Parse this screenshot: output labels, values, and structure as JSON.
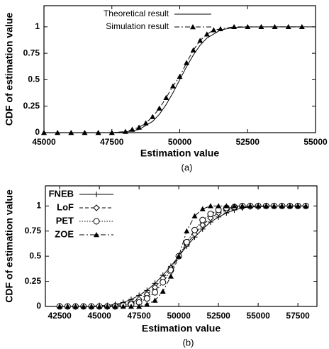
{
  "chart_data": [
    {
      "type": "line",
      "caption": "(a)",
      "xlabel": "Estimation value",
      "ylabel": "CDF of estimation value",
      "xlim": [
        45000,
        55000
      ],
      "xticks": [
        45000,
        47500,
        50000,
        52500,
        55000
      ],
      "ylim": [
        0,
        1.2
      ],
      "yticks": [
        0,
        0.25,
        0.5,
        0.75,
        1
      ],
      "grid": false,
      "legend": "top-left",
      "series": [
        {
          "name": "Theoretical result",
          "color": "#000000",
          "dash": "solid",
          "marker": "none",
          "x": [
            45000,
            47000,
            47500,
            48000,
            48500,
            49000,
            49250,
            49500,
            49750,
            50000,
            50250,
            50500,
            50750,
            51000,
            51500,
            52000,
            52500,
            55000
          ],
          "values": [
            0,
            0,
            0.001,
            0.006,
            0.03,
            0.106,
            0.174,
            0.266,
            0.377,
            0.5,
            0.623,
            0.734,
            0.826,
            0.894,
            0.97,
            0.994,
            0.999,
            1
          ]
        },
        {
          "name": "Simulation result",
          "color": "#000000",
          "dash": "dashdot",
          "marker": "triangle",
          "x": [
            45000,
            45500,
            46000,
            46500,
            47000,
            47500,
            48000,
            48250,
            48500,
            48750,
            49000,
            49250,
            49500,
            49750,
            50000,
            50250,
            50500,
            50750,
            51000,
            51250,
            51500,
            52000,
            52500,
            53000,
            53500,
            54000,
            54500
          ],
          "values": [
            0,
            0,
            0,
            0,
            0,
            0,
            0.01,
            0.03,
            0.05,
            0.09,
            0.15,
            0.23,
            0.33,
            0.44,
            0.53,
            0.66,
            0.78,
            0.87,
            0.93,
            0.97,
            0.98,
            1,
            1,
            1,
            1,
            1,
            1
          ]
        }
      ]
    },
    {
      "type": "line",
      "caption": "(b)",
      "xlabel": "Estimation value",
      "ylabel": "CDF of estimation value",
      "xlim": [
        41600,
        58700
      ],
      "xticks": [
        42500,
        45000,
        47500,
        50000,
        52500,
        55000,
        57500
      ],
      "ylim": [
        0,
        1.2
      ],
      "yticks": [
        0,
        0.25,
        0.5,
        0.75,
        1
      ],
      "grid": false,
      "legend": "top-left",
      "series": [
        {
          "name": "FNEB",
          "color": "#000000",
          "dash": "solid",
          "marker": "plus",
          "x": [
            42500,
            43000,
            43500,
            44000,
            44500,
            45000,
            45500,
            46000,
            46500,
            47000,
            47500,
            48000,
            48500,
            49000,
            49500,
            50000,
            50500,
            51000,
            51500,
            52000,
            52500,
            53000,
            53500,
            54000,
            54500,
            55000,
            55500,
            56000,
            56500,
            57000,
            57500,
            58000
          ],
          "values": [
            0,
            0,
            0,
            0,
            0,
            0.01,
            0.01,
            0.02,
            0.04,
            0.07,
            0.11,
            0.16,
            0.23,
            0.31,
            0.4,
            0.5,
            0.6,
            0.69,
            0.77,
            0.84,
            0.89,
            0.93,
            0.96,
            0.98,
            0.99,
            0.99,
            1,
            1,
            1,
            1,
            1,
            1
          ]
        },
        {
          "name": "LoF",
          "color": "#000000",
          "dash": "dashed",
          "marker": "diamond",
          "x": [
            42500,
            43000,
            43500,
            44000,
            44500,
            45000,
            45500,
            46000,
            46500,
            47000,
            47500,
            48000,
            48500,
            49000,
            49500,
            50000,
            50500,
            51000,
            51500,
            52000,
            52500,
            53000,
            53500,
            54000,
            54500,
            55000,
            55500,
            56000,
            56500,
            57000,
            57500,
            58000
          ],
          "values": [
            0,
            0,
            0,
            0,
            0,
            0,
            0,
            0.01,
            0.02,
            0.04,
            0.07,
            0.12,
            0.19,
            0.28,
            0.38,
            0.5,
            0.62,
            0.72,
            0.81,
            0.88,
            0.93,
            0.96,
            0.98,
            0.99,
            1,
            1,
            1,
            1,
            1,
            1,
            1,
            1
          ]
        },
        {
          "name": "PET",
          "color": "#000000",
          "dash": "dotted",
          "marker": "circle",
          "x": [
            42500,
            43000,
            43500,
            44000,
            44500,
            45000,
            45500,
            46000,
            46500,
            47000,
            47500,
            48000,
            48500,
            49000,
            49500,
            50000,
            50500,
            51000,
            51500,
            52000,
            52500,
            53000,
            53500,
            54000,
            54500,
            55000,
            55500,
            56000,
            56500,
            57000,
            57500,
            58000
          ],
          "values": [
            0,
            0,
            0,
            0,
            0,
            0,
            0,
            0,
            0.01,
            0.02,
            0.04,
            0.08,
            0.14,
            0.24,
            0.36,
            0.5,
            0.64,
            0.76,
            0.86,
            0.92,
            0.96,
            0.98,
            0.99,
            1,
            1,
            1,
            1,
            1,
            1,
            1,
            1,
            1
          ]
        },
        {
          "name": "ZOE",
          "color": "#000000",
          "dash": "dashdot",
          "marker": "triangle",
          "x": [
            42500,
            43000,
            43500,
            44000,
            44500,
            45000,
            45500,
            46000,
            46500,
            47000,
            47500,
            48000,
            48500,
            49000,
            49500,
            50000,
            50500,
            51000,
            51500,
            52000,
            52500,
            53000,
            53500,
            54000,
            54500,
            55000,
            55500,
            56000,
            56500,
            57000,
            57500,
            58000
          ],
          "values": [
            0,
            0,
            0,
            0,
            0,
            0,
            0,
            0,
            0,
            0,
            0,
            0.02,
            0.06,
            0.15,
            0.3,
            0.5,
            0.75,
            0.9,
            0.97,
            1,
            1,
            1,
            1,
            1,
            1,
            1,
            1,
            1,
            1,
            1,
            1,
            1
          ]
        }
      ]
    }
  ]
}
